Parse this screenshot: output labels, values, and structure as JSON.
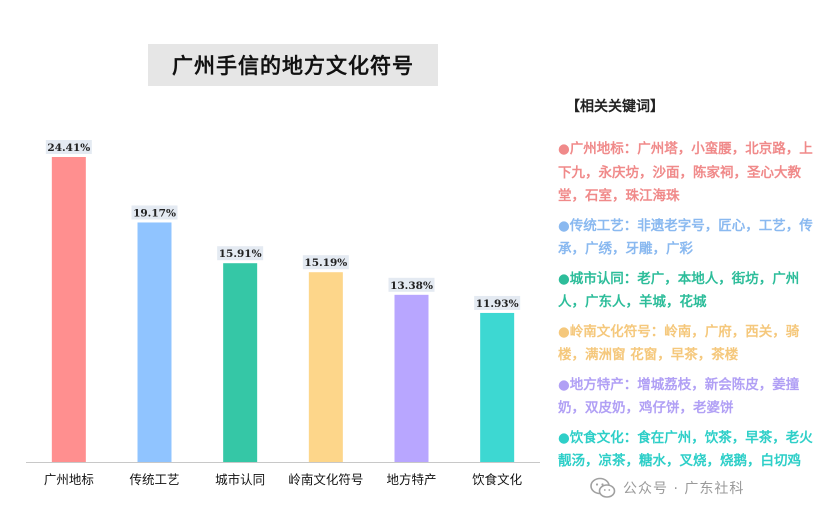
{
  "chart_data": {
    "type": "bar",
    "title": "广州手信的地方文化符号",
    "categories": [
      "广州地标",
      "传统工艺",
      "城市认同",
      "岭南文化符号",
      "地方特产",
      "饮食文化"
    ],
    "values": [
      24.41,
      19.17,
      15.91,
      15.19,
      13.38,
      11.93
    ],
    "value_labels": [
      "24.41%",
      "19.17%",
      "15.91%",
      "15.19%",
      "13.38%",
      "11.93%"
    ],
    "colors": [
      "#ff8f8f",
      "#90c4ff",
      "#35c7a6",
      "#fdd68a",
      "#b8a6ff",
      "#3dd8d2"
    ],
    "ylim": [
      0,
      26
    ],
    "grid": false,
    "legend": "none"
  },
  "keywords_panel": {
    "title": "【相关关键词】",
    "items": [
      {
        "text": "●广州地标：广州塔，小蛮腰，北京路，上下九，永庆坊，沙面，陈家祠，圣心大教堂，石室，珠江海珠",
        "color": "#f08a8a"
      },
      {
        "text": "●传统工艺：非遗老字号，匠心，工艺，传承，广绣，牙雕，广彩",
        "color": "#8ab9f0"
      },
      {
        "text": "●城市认同：老广，本地人，街坊，广州人，广东人，羊城，花城",
        "color": "#2dbd9a"
      },
      {
        "text": "●岭南文化符号：岭南，广府，西关，骑楼，满洲窗 花窗，早茶，茶楼",
        "color": "#f5c87c"
      },
      {
        "text": "●地方特产：增城荔枝，新会陈皮，姜撞奶，双皮奶，鸡仔饼，老婆饼",
        "color": "#b1a0f5"
      },
      {
        "text": "●饮食文化：食在广州，饮茶，早茶，老火靓汤，凉茶，糖水，叉烧，烧鹅，白切鸡",
        "color": "#2ecfc8"
      }
    ]
  },
  "watermark": {
    "text": "公众号 · 广东社科",
    "icon": "wechat-icon"
  }
}
